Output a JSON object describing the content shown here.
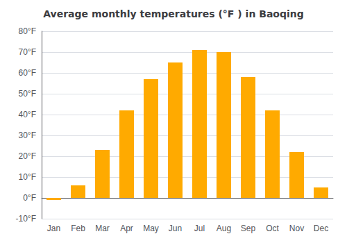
{
  "chart_data": {
    "type": "bar",
    "title": "Average monthly temperatures (°F ) in Baoqing",
    "categories": [
      "Jan",
      "Feb",
      "Mar",
      "Apr",
      "May",
      "Jun",
      "Jul",
      "Aug",
      "Sep",
      "Oct",
      "Nov",
      "Dec"
    ],
    "values": [
      -1,
      6,
      23,
      42,
      57,
      65,
      71,
      70,
      58,
      42,
      22,
      5
    ],
    "color": "#FFAA00",
    "ylim": [
      -10,
      80
    ],
    "yticks": [
      {
        "value": -10,
        "label": "-10°F"
      },
      {
        "value": 0,
        "label": "0°F"
      },
      {
        "value": 10,
        "label": "10°F"
      },
      {
        "value": 20,
        "label": "20°F"
      },
      {
        "value": 30,
        "label": "30°F"
      },
      {
        "value": 40,
        "label": "40°F"
      },
      {
        "value": 50,
        "label": "50°F"
      },
      {
        "value": 60,
        "label": "60°F"
      },
      {
        "value": 70,
        "label": "70°F"
      },
      {
        "value": 80,
        "label": "80°F"
      }
    ],
    "grid": true
  }
}
